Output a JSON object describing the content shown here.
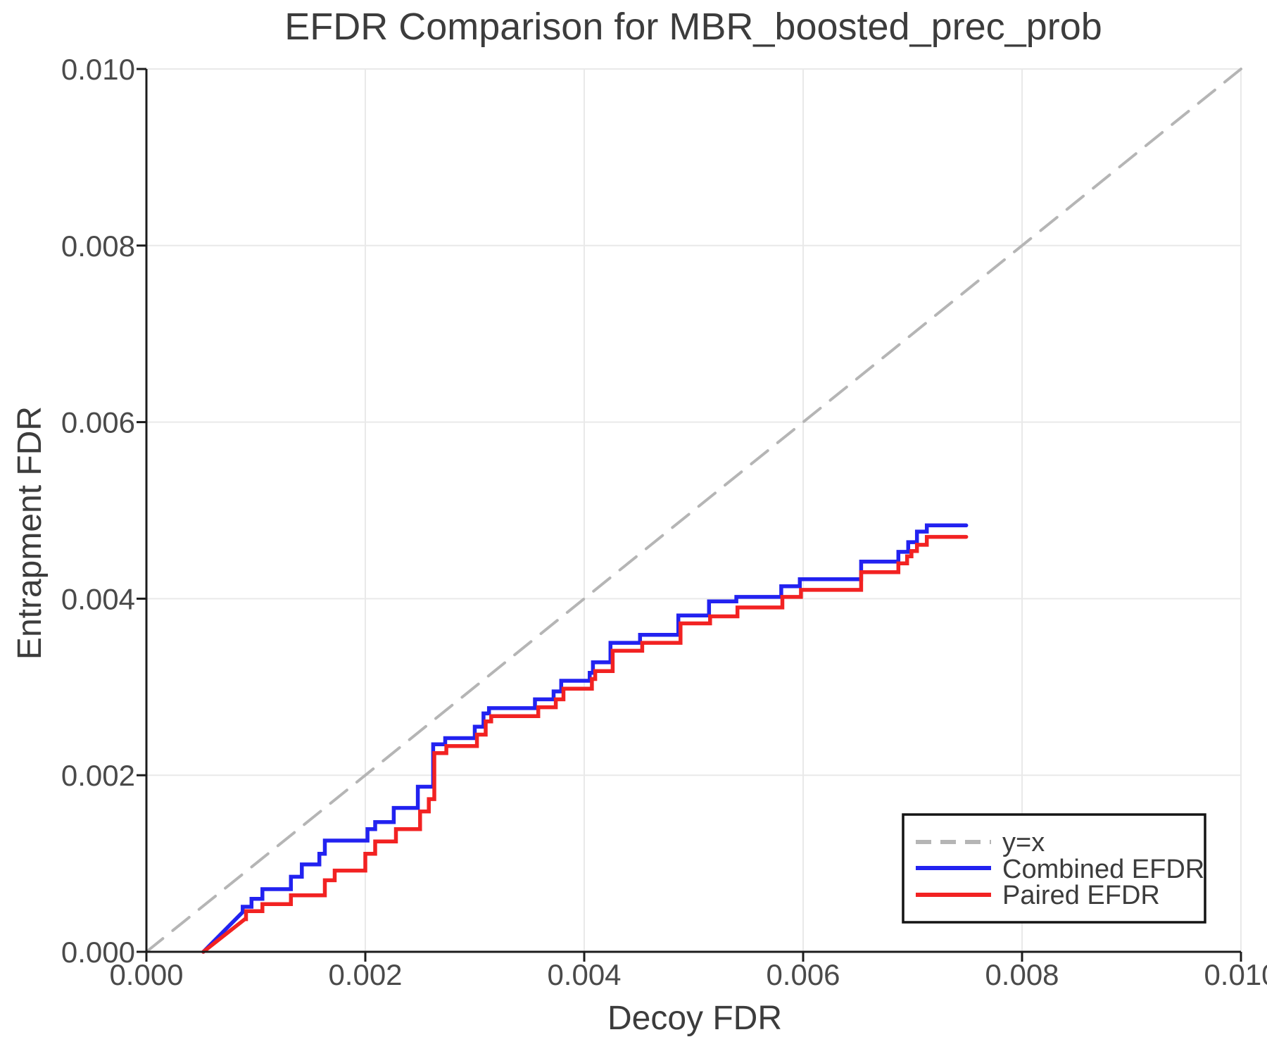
{
  "title": "EFDR Comparison for MBR_boosted_prec_prob",
  "axes": {
    "xlabel": "Decoy FDR",
    "ylabel": "Entrapment FDR",
    "xlim": [
      0.0,
      0.01
    ],
    "ylim": [
      0.0,
      0.01
    ],
    "xticks": [
      0.0,
      0.002,
      0.004,
      0.006,
      0.008,
      0.01
    ],
    "xtick_labels": [
      "0.000",
      "0.002",
      "0.004",
      "0.006",
      "0.008",
      "0.010"
    ],
    "yticks": [
      0.0,
      0.002,
      0.004,
      0.006,
      0.008,
      0.01
    ],
    "ytick_labels": [
      "0.000",
      "0.002",
      "0.004",
      "0.006",
      "0.008",
      "0.010"
    ]
  },
  "colors": {
    "background": "#ffffff",
    "grid": "#e9e9e9",
    "spine": "#1c1c1c",
    "identity_line": "#b5b5b5",
    "combined": "#2222f0",
    "paired": "#f22222",
    "text": "#3c3c3c"
  },
  "chart_data": {
    "type": "line",
    "title": "EFDR Comparison for MBR_boosted_prec_prob",
    "xlabel": "Decoy FDR",
    "ylabel": "Entrapment FDR",
    "xlim": [
      0.0,
      0.01
    ],
    "ylim": [
      0.0,
      0.01
    ],
    "grid": true,
    "legend_position": "bottom-right",
    "series": [
      {
        "name": "y=x",
        "color": "#b5b5b5",
        "style": "dashed",
        "width": 4,
        "points": [
          [
            0.0,
            0.0
          ],
          [
            0.01,
            0.01
          ]
        ]
      },
      {
        "name": "Combined EFDR",
        "color": "#2222f0",
        "style": "solid",
        "width": 5.5,
        "points": [
          [
            0.00052,
            0.0
          ],
          [
            0.00088,
            0.00045
          ],
          [
            0.00088,
            0.00051
          ],
          [
            0.00096,
            0.00051
          ],
          [
            0.00096,
            0.0006
          ],
          [
            0.00106,
            0.0006
          ],
          [
            0.00106,
            0.00071
          ],
          [
            0.00132,
            0.00071
          ],
          [
            0.00132,
            0.00085
          ],
          [
            0.00142,
            0.00085
          ],
          [
            0.00142,
            0.00099
          ],
          [
            0.00158,
            0.00099
          ],
          [
            0.00158,
            0.00111
          ],
          [
            0.00163,
            0.00111
          ],
          [
            0.00163,
            0.00126
          ],
          [
            0.00202,
            0.00126
          ],
          [
            0.00202,
            0.00139
          ],
          [
            0.00209,
            0.00139
          ],
          [
            0.00209,
            0.00147
          ],
          [
            0.00226,
            0.00147
          ],
          [
            0.00226,
            0.00163
          ],
          [
            0.00248,
            0.00163
          ],
          [
            0.00248,
            0.00187
          ],
          [
            0.00262,
            0.00187
          ],
          [
            0.00262,
            0.00235
          ],
          [
            0.00273,
            0.00235
          ],
          [
            0.00273,
            0.00242
          ],
          [
            0.003,
            0.00242
          ],
          [
            0.003,
            0.00255
          ],
          [
            0.00308,
            0.00255
          ],
          [
            0.00308,
            0.0027
          ],
          [
            0.00313,
            0.0027
          ],
          [
            0.00313,
            0.00276
          ],
          [
            0.00355,
            0.00276
          ],
          [
            0.00355,
            0.00286
          ],
          [
            0.00372,
            0.00286
          ],
          [
            0.00372,
            0.00295
          ],
          [
            0.00379,
            0.00295
          ],
          [
            0.00379,
            0.00307
          ],
          [
            0.00405,
            0.00307
          ],
          [
            0.00405,
            0.00316
          ],
          [
            0.00408,
            0.00316
          ],
          [
            0.00408,
            0.00328
          ],
          [
            0.00424,
            0.00328
          ],
          [
            0.00424,
            0.0035
          ],
          [
            0.00451,
            0.0035
          ],
          [
            0.00451,
            0.00359
          ],
          [
            0.00486,
            0.00359
          ],
          [
            0.00486,
            0.00381
          ],
          [
            0.00514,
            0.00381
          ],
          [
            0.00514,
            0.00397
          ],
          [
            0.00539,
            0.00397
          ],
          [
            0.00539,
            0.00402
          ],
          [
            0.0058,
            0.00402
          ],
          [
            0.0058,
            0.00414
          ],
          [
            0.00597,
            0.00414
          ],
          [
            0.00597,
            0.00422
          ],
          [
            0.00653,
            0.00422
          ],
          [
            0.00653,
            0.00442
          ],
          [
            0.00687,
            0.00442
          ],
          [
            0.00687,
            0.00453
          ],
          [
            0.00696,
            0.00453
          ],
          [
            0.00696,
            0.00464
          ],
          [
            0.00704,
            0.00464
          ],
          [
            0.00704,
            0.00476
          ],
          [
            0.00713,
            0.00476
          ],
          [
            0.00713,
            0.00483
          ],
          [
            0.00749,
            0.00483
          ]
        ]
      },
      {
        "name": "Paired EFDR",
        "color": "#f22222",
        "style": "solid",
        "width": 5.5,
        "points": [
          [
            0.00052,
            0.0
          ],
          [
            0.0009,
            0.00037
          ],
          [
            0.00091,
            0.00037
          ],
          [
            0.00091,
            0.00046
          ],
          [
            0.00106,
            0.00046
          ],
          [
            0.00106,
            0.00054
          ],
          [
            0.00132,
            0.00054
          ],
          [
            0.00132,
            0.00064
          ],
          [
            0.00163,
            0.00064
          ],
          [
            0.00163,
            0.00081
          ],
          [
            0.00172,
            0.00081
          ],
          [
            0.00172,
            0.00092
          ],
          [
            0.002,
            0.00092
          ],
          [
            0.002,
            0.00111
          ],
          [
            0.00209,
            0.00111
          ],
          [
            0.00209,
            0.00125
          ],
          [
            0.00228,
            0.00125
          ],
          [
            0.00228,
            0.00139
          ],
          [
            0.0025,
            0.00139
          ],
          [
            0.0025,
            0.00159
          ],
          [
            0.00258,
            0.00159
          ],
          [
            0.00258,
            0.00173
          ],
          [
            0.00263,
            0.00173
          ],
          [
            0.00263,
            0.00225
          ],
          [
            0.00274,
            0.00225
          ],
          [
            0.00274,
            0.00233
          ],
          [
            0.00302,
            0.00233
          ],
          [
            0.00302,
            0.00246
          ],
          [
            0.0031,
            0.00246
          ],
          [
            0.0031,
            0.00261
          ],
          [
            0.00315,
            0.00261
          ],
          [
            0.00315,
            0.00267
          ],
          [
            0.00358,
            0.00267
          ],
          [
            0.00358,
            0.00277
          ],
          [
            0.00374,
            0.00277
          ],
          [
            0.00374,
            0.00286
          ],
          [
            0.00381,
            0.00286
          ],
          [
            0.00381,
            0.00298
          ],
          [
            0.00407,
            0.00298
          ],
          [
            0.00407,
            0.00309
          ],
          [
            0.0041,
            0.00309
          ],
          [
            0.0041,
            0.00318
          ],
          [
            0.00426,
            0.00318
          ],
          [
            0.00426,
            0.00341
          ],
          [
            0.00453,
            0.00341
          ],
          [
            0.00453,
            0.0035
          ],
          [
            0.00488,
            0.0035
          ],
          [
            0.00488,
            0.00372
          ],
          [
            0.00515,
            0.00372
          ],
          [
            0.00515,
            0.0038
          ],
          [
            0.0054,
            0.0038
          ],
          [
            0.0054,
            0.0039
          ],
          [
            0.00581,
            0.0039
          ],
          [
            0.00581,
            0.00402
          ],
          [
            0.00598,
            0.00402
          ],
          [
            0.00598,
            0.0041
          ],
          [
            0.00653,
            0.0041
          ],
          [
            0.00653,
            0.0043
          ],
          [
            0.00687,
            0.0043
          ],
          [
            0.00687,
            0.0044
          ],
          [
            0.00695,
            0.0044
          ],
          [
            0.00695,
            0.00448
          ],
          [
            0.00699,
            0.00448
          ],
          [
            0.00699,
            0.00454
          ],
          [
            0.00704,
            0.00454
          ],
          [
            0.00704,
            0.00461
          ],
          [
            0.00713,
            0.00461
          ],
          [
            0.00713,
            0.0047
          ],
          [
            0.00749,
            0.0047
          ]
        ]
      }
    ]
  }
}
